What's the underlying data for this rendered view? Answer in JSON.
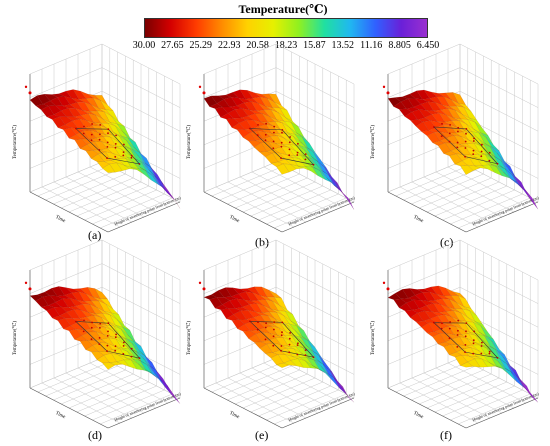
{
  "colorbar": {
    "title": "Temperature(℃)",
    "ticks": [
      "30.00",
      "27.65",
      "25.29",
      "22.93",
      "20.58",
      "18.23",
      "15.87",
      "13.52",
      "11.16",
      "8.805",
      "6.450"
    ],
    "colors": [
      "#7a0000",
      "#d40000",
      "#ff3c00",
      "#ff8c00",
      "#ffd200",
      "#e6f000",
      "#90f020",
      "#20e0a0",
      "#20b8f0",
      "#3060ff",
      "#6a20d8",
      "#9a30d0"
    ]
  },
  "chart_data": [
    {
      "type": "surface",
      "label": "(a)",
      "ylabel": "Temperature(℃)",
      "xlabel": "Time",
      "zlabel": "Height of monitoring point from bottom (m)",
      "zlim": [
        6.45,
        30.0
      ]
    },
    {
      "type": "surface",
      "label": "(b)",
      "ylabel": "Temperature(℃)",
      "xlabel": "Time",
      "zlabel": "Height of monitoring point from bottom (m)",
      "zlim": [
        6.45,
        30.0
      ]
    },
    {
      "type": "surface",
      "label": "(c)",
      "ylabel": "Temperature(℃)",
      "xlabel": "Time",
      "zlabel": "Height of monitoring point from bottom (m)",
      "zlim": [
        6.45,
        30.0
      ]
    },
    {
      "type": "surface",
      "label": "(d)",
      "ylabel": "Temperature(℃)",
      "xlabel": "Time",
      "zlabel": "Height of monitoring point from bottom (m)",
      "zlim": [
        6.45,
        30.0
      ]
    },
    {
      "type": "surface",
      "label": "(e)",
      "ylabel": "Temperature(℃)",
      "xlabel": "Time",
      "zlabel": "Height of monitoring point from bottom (m)",
      "zlim": [
        6.45,
        30.0
      ]
    },
    {
      "type": "surface",
      "label": "(f)",
      "ylabel": "Temperature(℃)",
      "xlabel": "Time",
      "zlabel": "Height of monitoring point from bottom (m)",
      "zlim": [
        6.45,
        30.0
      ]
    }
  ]
}
